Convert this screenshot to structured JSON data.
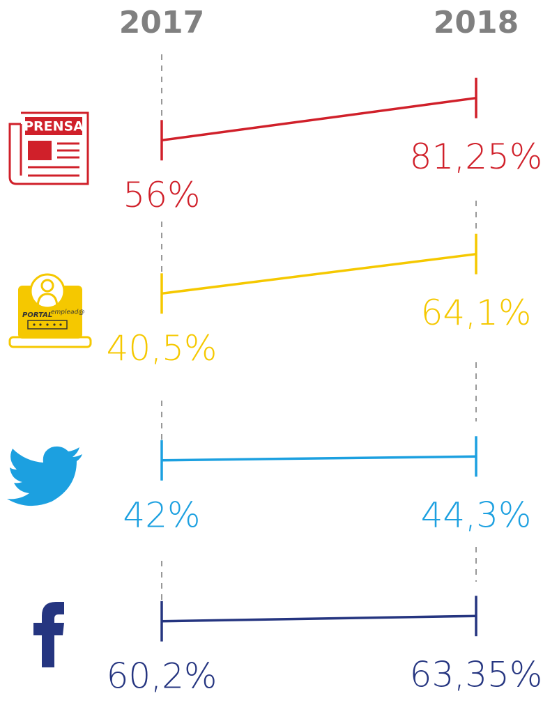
{
  "chart_data": {
    "type": "slope",
    "categories": [
      "2017",
      "2018"
    ],
    "series": [
      {
        "color": "#d0202a",
        "values": [
          56,
          81.25
        ],
        "value_labels": [
          "56%",
          "81,25%"
        ]
      },
      {
        "color": "#f5c800",
        "values": [
          40.5,
          64.1
        ],
        "value_labels": [
          "40,5%",
          "64,1%"
        ]
      },
      {
        "color": "#1ca0e0",
        "values": [
          42,
          44.3
        ],
        "value_labels": [
          "42%",
          "44,3%"
        ]
      },
      {
        "color": "#253580",
        "values": [
          60.2,
          63.35
        ],
        "value_labels": [
          "60,2%",
          "63,35%"
        ]
      }
    ]
  },
  "icons": {
    "press": "PRENSA",
    "portal": "PORTAL",
    "portal_sup": "emplead@"
  }
}
